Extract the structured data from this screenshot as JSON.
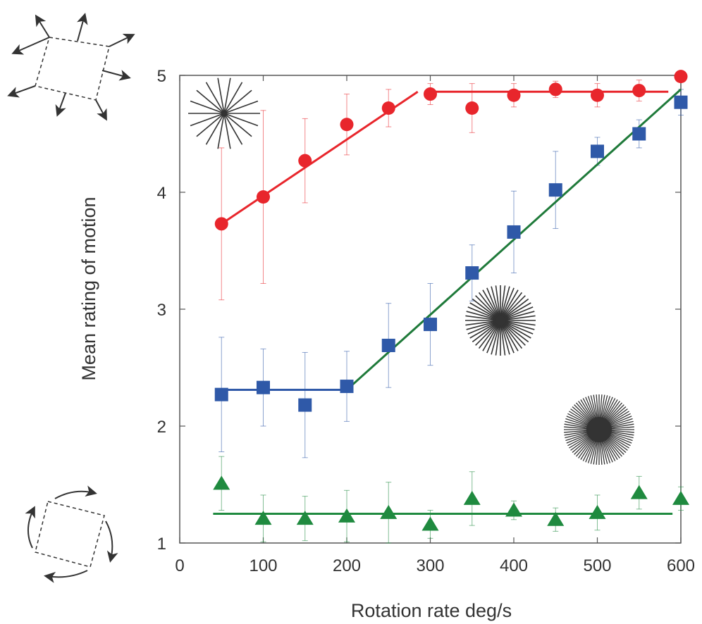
{
  "chart_data": {
    "type": "scatter",
    "title": "",
    "xlabel": "Rotation rate deg/s",
    "ylabel": "Mean rating of motion",
    "xlim": [
      0,
      600
    ],
    "ylim": [
      1,
      5
    ],
    "x_ticks": [
      0,
      100,
      200,
      300,
      400,
      500,
      600
    ],
    "y_ticks": [
      1,
      2,
      3,
      4,
      5
    ],
    "x_tick_labels": [
      "0",
      "100",
      "200",
      "300",
      "400",
      "500",
      "600"
    ],
    "y_tick_labels": [
      "1",
      "2",
      "3",
      "4",
      "5"
    ],
    "grid": false,
    "legend": "none",
    "series": [
      {
        "marker": "circle",
        "color": "#e8262c",
        "x": [
          50,
          100,
          150,
          200,
          250,
          300,
          350,
          400,
          450,
          500,
          550,
          600
        ],
        "y": [
          3.73,
          3.96,
          4.27,
          4.58,
          4.72,
          4.84,
          4.72,
          4.83,
          4.88,
          4.83,
          4.87,
          4.99
        ],
        "err": [
          0.65,
          0.74,
          0.36,
          0.26,
          0.16,
          0.09,
          0.21,
          0.1,
          0.07,
          0.1,
          0.09,
          0.03
        ],
        "fit": [
          {
            "x": [
              50,
              285
            ],
            "y": [
              3.73,
              4.86
            ]
          },
          {
            "x": [
              300,
              585
            ],
            "y": [
              4.86,
              4.86
            ]
          }
        ]
      },
      {
        "marker": "square",
        "color": "#2f59a8",
        "x": [
          50,
          100,
          150,
          200,
          250,
          300,
          350,
          400,
          450,
          500,
          550,
          600
        ],
        "y": [
          2.27,
          2.33,
          2.18,
          2.34,
          2.69,
          2.87,
          3.31,
          3.66,
          4.02,
          4.35,
          4.5,
          4.77
        ],
        "err": [
          0.49,
          0.33,
          0.45,
          0.3,
          0.36,
          0.35,
          0.24,
          0.35,
          0.33,
          0.12,
          0.12,
          0.11
        ],
        "fit": [
          {
            "x": [
              50,
              200
            ],
            "y": [
              2.31,
              2.31
            ],
            "color": "#2f59a8"
          },
          {
            "x": [
              200,
              600
            ],
            "y": [
              2.31,
              4.88
            ],
            "color": "#1f7a3a"
          }
        ]
      },
      {
        "marker": "triangle",
        "color": "#1f8a3f",
        "x": [
          50,
          100,
          150,
          200,
          250,
          300,
          350,
          400,
          450,
          500,
          550,
          600
        ],
        "y": [
          1.51,
          1.21,
          1.21,
          1.23,
          1.26,
          1.16,
          1.38,
          1.28,
          1.2,
          1.26,
          1.43,
          1.38
        ],
        "err": [
          0.23,
          0.2,
          0.19,
          0.22,
          0.26,
          0.12,
          0.23,
          0.08,
          0.1,
          0.15,
          0.14,
          0.1
        ],
        "fit": [
          {
            "x": [
              40,
              590
            ],
            "y": [
              1.25,
              1.25
            ]
          }
        ]
      }
    ],
    "annotations": [
      {
        "kind": "sparse-star-icon"
      },
      {
        "kind": "dense-star-icon"
      },
      {
        "kind": "filled-star-icon"
      },
      {
        "kind": "expanding-square-icon"
      },
      {
        "kind": "rotating-square-icon"
      }
    ]
  }
}
